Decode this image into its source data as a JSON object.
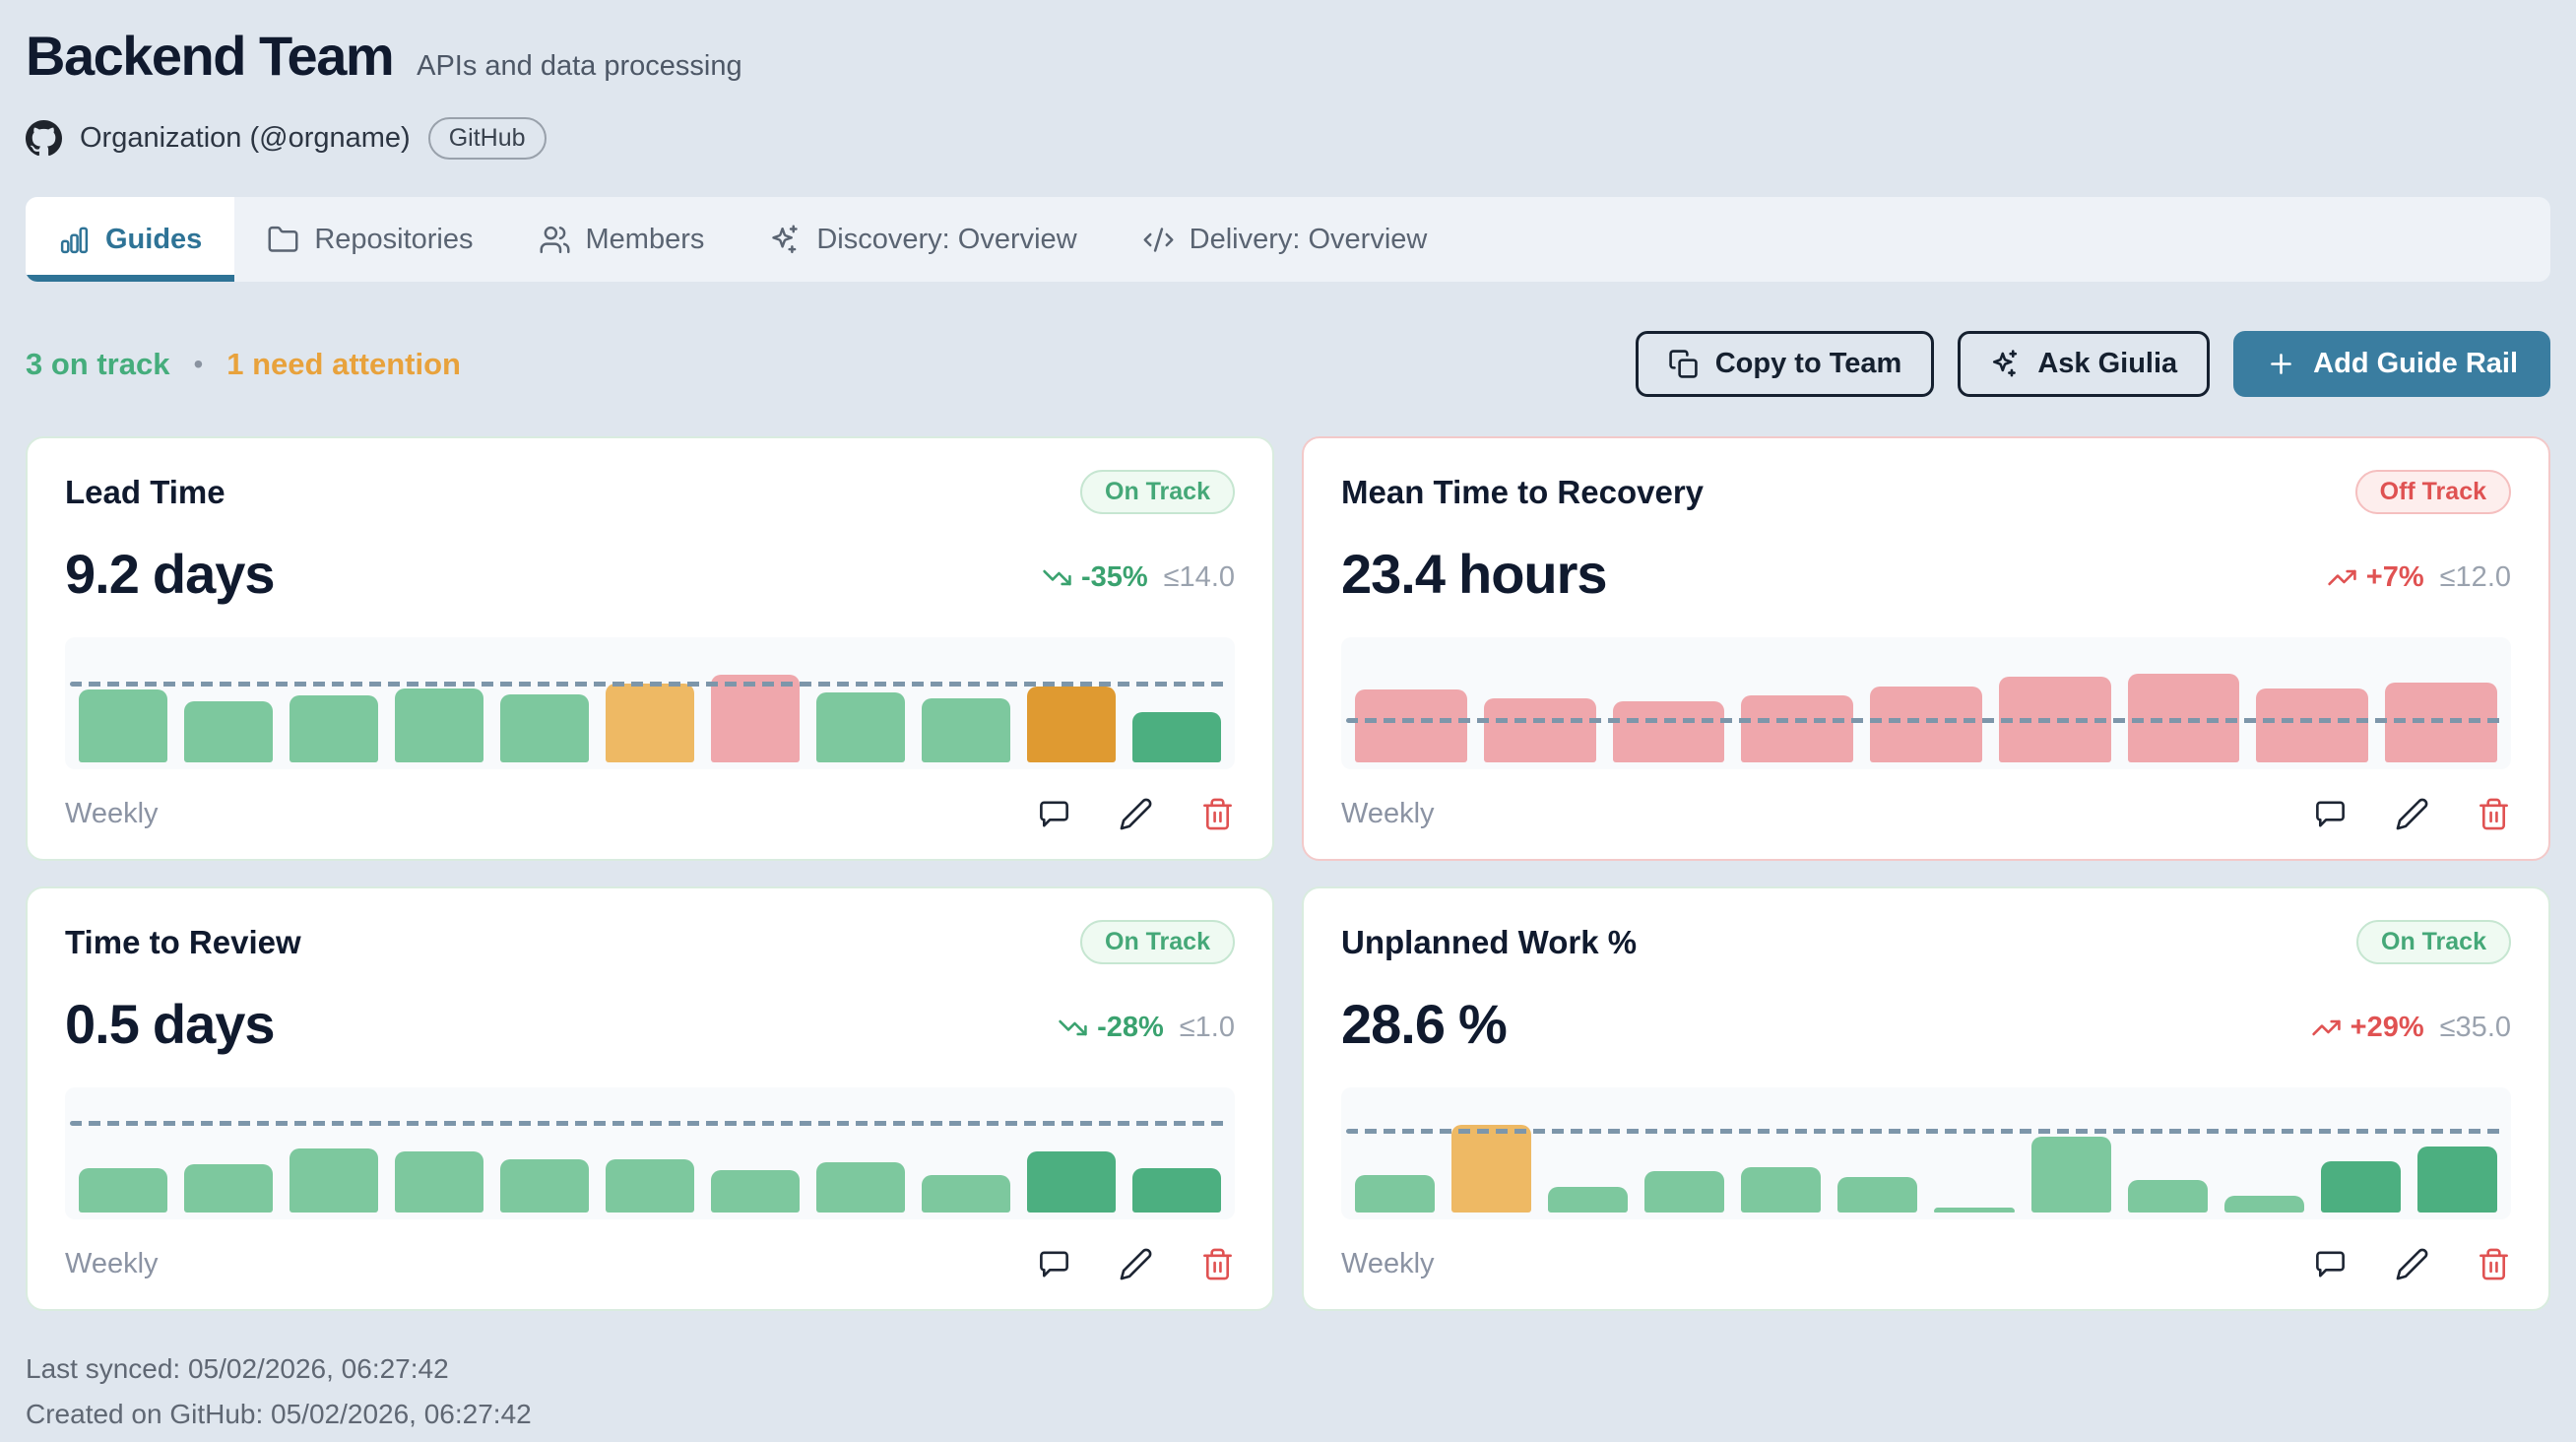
{
  "header": {
    "title": "Backend Team",
    "subtitle": "APIs and data processing",
    "org_label": "Organization (@orgname)",
    "org_badge": "GitHub"
  },
  "tabs": [
    {
      "label": "Guides",
      "icon": "bar-chart",
      "active": true
    },
    {
      "label": "Repositories",
      "icon": "folder",
      "active": false
    },
    {
      "label": "Members",
      "icon": "users",
      "active": false
    },
    {
      "label": "Discovery: Overview",
      "icon": "sparkles",
      "active": false
    },
    {
      "label": "Delivery: Overview",
      "icon": "code",
      "active": false
    }
  ],
  "summary": {
    "on_track": "3 on track",
    "separator": "•",
    "attention": "1 need attention"
  },
  "actions": {
    "copy": "Copy to Team",
    "ask": "Ask Giulia",
    "add": "Add Guide Rail"
  },
  "palette": {
    "green": "#7dc89e",
    "greenDark": "#4caf80",
    "amber": "#eeb964",
    "amberDark": "#df9a31",
    "red": "#efa7ac",
    "threshold_line": "#7d96aa",
    "accent": "#2e7396",
    "on_track": "#45a878",
    "off_track": "#df5252",
    "attention": "#e8a23c"
  },
  "cards": [
    {
      "title": "Lead Time",
      "status": "On Track",
      "status_type": "on-track",
      "value": "9.2",
      "unit": "days",
      "trend": {
        "label": "-35%",
        "direction": "down",
        "sentiment": "good"
      },
      "threshold_label": "≤14.0",
      "period": "Weekly",
      "chart": {
        "type": "bar",
        "threshold_value": 14.0,
        "threshold_pct": 66,
        "bars": [
          {
            "value": 13.2,
            "pct": 62,
            "color": "green"
          },
          {
            "value": 11.0,
            "pct": 52,
            "color": "green"
          },
          {
            "value": 12.1,
            "pct": 57,
            "color": "green"
          },
          {
            "value": 13.4,
            "pct": 63,
            "color": "green"
          },
          {
            "value": 12.3,
            "pct": 58,
            "color": "green"
          },
          {
            "value": 14.2,
            "pct": 67,
            "color": "amber"
          },
          {
            "value": 15.9,
            "pct": 75,
            "color": "red"
          },
          {
            "value": 12.7,
            "pct": 60,
            "color": "green"
          },
          {
            "value": 11.7,
            "pct": 55,
            "color": "green"
          },
          {
            "value": 13.8,
            "pct": 65,
            "color": "amberDark"
          },
          {
            "value": 9.2,
            "pct": 43,
            "color": "greenDark"
          }
        ]
      }
    },
    {
      "title": "Mean Time to Recovery",
      "status": "Off Track",
      "status_type": "off-track",
      "value": "23.4",
      "unit": "hours",
      "trend": {
        "label": "+7%",
        "direction": "up",
        "sentiment": "bad"
      },
      "threshold_label": "≤12.0",
      "period": "Weekly",
      "chart": {
        "type": "bar",
        "threshold_value": 12.0,
        "threshold_pct": 35,
        "bars": [
          {
            "value": 21.3,
            "pct": 62,
            "color": "red"
          },
          {
            "value": 18.9,
            "pct": 55,
            "color": "red"
          },
          {
            "value": 17.8,
            "pct": 52,
            "color": "red"
          },
          {
            "value": 19.5,
            "pct": 57,
            "color": "red"
          },
          {
            "value": 22.3,
            "pct": 65,
            "color": "red"
          },
          {
            "value": 25.0,
            "pct": 73,
            "color": "red"
          },
          {
            "value": 26.1,
            "pct": 76,
            "color": "red"
          },
          {
            "value": 21.6,
            "pct": 63,
            "color": "red"
          },
          {
            "value": 23.4,
            "pct": 68,
            "color": "red"
          }
        ]
      }
    },
    {
      "title": "Time to Review",
      "status": "On Track",
      "status_type": "on-track",
      "value": "0.5",
      "unit": "days",
      "trend": {
        "label": "-28%",
        "direction": "down",
        "sentiment": "good"
      },
      "threshold_label": "≤1.0",
      "period": "Weekly",
      "chart": {
        "type": "bar",
        "threshold_value": 1.0,
        "threshold_pct": 76,
        "bars": [
          {
            "value": 0.5,
            "pct": 38,
            "color": "green"
          },
          {
            "value": 0.54,
            "pct": 41,
            "color": "green"
          },
          {
            "value": 0.72,
            "pct": 55,
            "color": "green"
          },
          {
            "value": 0.68,
            "pct": 52,
            "color": "green"
          },
          {
            "value": 0.59,
            "pct": 45,
            "color": "green"
          },
          {
            "value": 0.59,
            "pct": 45,
            "color": "green"
          },
          {
            "value": 0.47,
            "pct": 36,
            "color": "green"
          },
          {
            "value": 0.57,
            "pct": 43,
            "color": "green"
          },
          {
            "value": 0.42,
            "pct": 32,
            "color": "green"
          },
          {
            "value": 0.68,
            "pct": 52,
            "color": "greenDark"
          },
          {
            "value": 0.5,
            "pct": 38,
            "color": "greenDark"
          }
        ]
      }
    },
    {
      "title": "Unplanned Work %",
      "status": "On Track",
      "status_type": "on-track",
      "value": "28.6",
      "unit": "%",
      "trend": {
        "label": "+29%",
        "direction": "up",
        "sentiment": "bad"
      },
      "threshold_label": "≤35.0",
      "period": "Weekly",
      "chart": {
        "type": "bar",
        "threshold_value": 35.0,
        "threshold_pct": 69,
        "bars": [
          {
            "value": 16.2,
            "pct": 32,
            "color": "green"
          },
          {
            "value": 38.0,
            "pct": 75,
            "color": "amber"
          },
          {
            "value": 11.2,
            "pct": 22,
            "color": "green"
          },
          {
            "value": 17.8,
            "pct": 35,
            "color": "green"
          },
          {
            "value": 19.8,
            "pct": 39,
            "color": "green"
          },
          {
            "value": 15.2,
            "pct": 30,
            "color": "green"
          },
          {
            "value": 2.0,
            "pct": 4,
            "color": "green"
          },
          {
            "value": 33.0,
            "pct": 65,
            "color": "green"
          },
          {
            "value": 14.2,
            "pct": 28,
            "color": "green"
          },
          {
            "value": 7.1,
            "pct": 14,
            "color": "green"
          },
          {
            "value": 22.3,
            "pct": 44,
            "color": "greenDark"
          },
          {
            "value": 28.6,
            "pct": 56,
            "color": "greenDark"
          }
        ]
      }
    }
  ],
  "footer": {
    "last_synced": "Last synced: 05/02/2026, 06:27:42",
    "created": "Created on GitHub: 05/02/2026, 06:27:42"
  }
}
